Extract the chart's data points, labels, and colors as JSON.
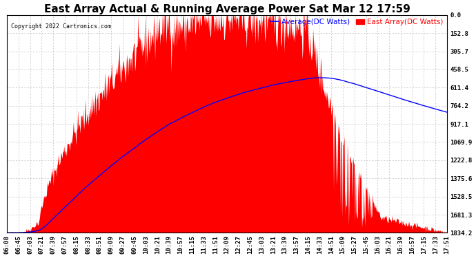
{
  "title": "East Array Actual & Running Average Power Sat Mar 12 17:59",
  "copyright": "Copyright 2022 Cartronics.com",
  "legend_avg": "Average(DC Watts)",
  "legend_east": "East Array(DC Watts)",
  "legend_avg_color": "blue",
  "legend_east_color": "red",
  "ylabel_right": [
    "1834.2",
    "1681.3",
    "1528.5",
    "1375.6",
    "1222.8",
    "1069.9",
    "917.1",
    "764.2",
    "611.4",
    "458.5",
    "305.7",
    "152.8",
    "0.0"
  ],
  "ymax": 1834.2,
  "ymin": 0.0,
  "yticks": [
    0.0,
    152.8,
    305.7,
    458.5,
    611.4,
    764.2,
    917.1,
    1069.9,
    1222.8,
    1375.6,
    1528.5,
    1681.3,
    1834.2
  ],
  "xtick_labels": [
    "06:08",
    "06:45",
    "07:03",
    "07:21",
    "07:39",
    "07:57",
    "08:15",
    "08:33",
    "08:51",
    "09:09",
    "09:27",
    "09:45",
    "10:03",
    "10:21",
    "10:39",
    "10:57",
    "11:15",
    "11:33",
    "11:51",
    "12:09",
    "12:27",
    "12:45",
    "13:03",
    "13:21",
    "13:39",
    "13:57",
    "14:15",
    "14:33",
    "14:51",
    "15:09",
    "15:27",
    "15:45",
    "16:03",
    "16:21",
    "16:39",
    "16:57",
    "17:15",
    "17:33",
    "17:51"
  ],
  "fill_color": "red",
  "line_color": "blue",
  "bg_color": "#ffffff",
  "grid_color": "#bbbbbb",
  "title_fontsize": 11,
  "axis_fontsize": 6.5,
  "label_fontsize": 7.5
}
